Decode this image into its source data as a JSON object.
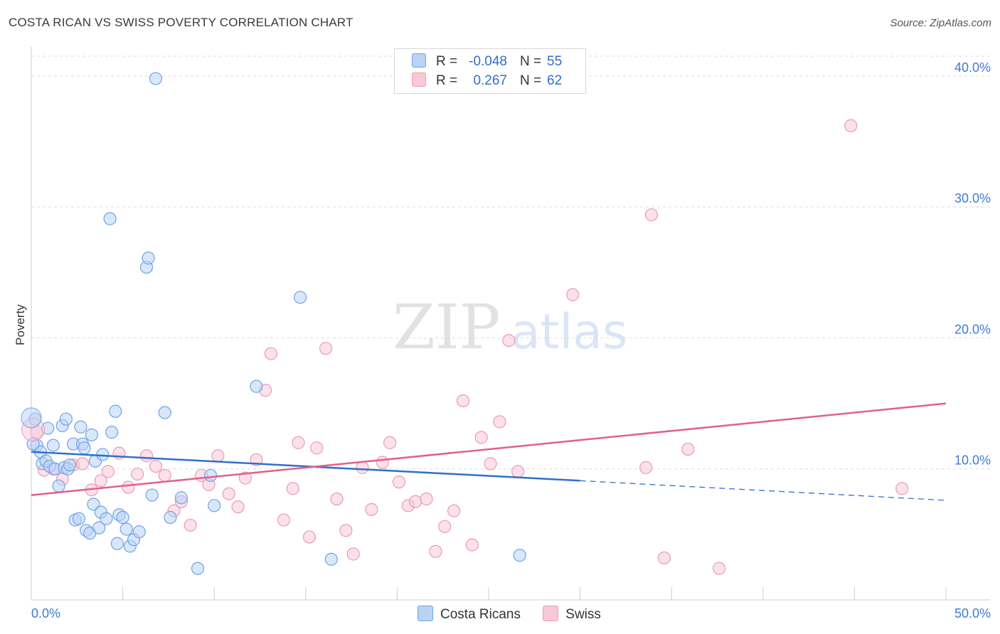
{
  "title": "COSTA RICAN VS SWISS POVERTY CORRELATION CHART",
  "source": "Source: ZipAtlas.com",
  "watermark": {
    "zip": "ZIP",
    "atlas": "atlas"
  },
  "legend": {
    "r_label": "R =",
    "n_label": "N =",
    "rows": [
      {
        "r": "-0.048",
        "n": "55"
      },
      {
        "r": "0.267",
        "n": "62"
      }
    ]
  },
  "chart_data": {
    "type": "scatter",
    "title": "COSTA RICAN VS SWISS POVERTY CORRELATION CHART",
    "xlabel": "",
    "ylabel": "Poverty",
    "xlim": [
      0,
      50
    ],
    "ylim": [
      0,
      42
    ],
    "x_tick_labels": [
      {
        "value": 0,
        "label": "0.0%"
      },
      {
        "value": 50,
        "label": "50.0%"
      }
    ],
    "x_minor_ticks": [
      0,
      5,
      10,
      15,
      20,
      25,
      30,
      35,
      40,
      45,
      50
    ],
    "y_ticks": [
      {
        "value": 10,
        "label": "10.0%"
      },
      {
        "value": 20,
        "label": "20.0%"
      },
      {
        "value": 30,
        "label": "30.0%"
      },
      {
        "value": 40,
        "label": "40.0%"
      }
    ],
    "grid": "horizontal-dashed",
    "series": [
      {
        "name": "Costa Ricans",
        "color": "#6fa3e6",
        "fill": "#b9d3f5",
        "line_color": "#2f6fce",
        "r": -0.048,
        "n": 55,
        "trend": {
          "x0": 0,
          "y0": 11.3,
          "x1": 30,
          "y1": 9.1,
          "dash_to_x": 50,
          "dash_to_y": 7.6
        },
        "points": [
          [
            0.2,
            13.8
          ],
          [
            0.3,
            11.8
          ],
          [
            0.5,
            11.3
          ],
          [
            0.6,
            10.4
          ],
          [
            0.8,
            10.6
          ],
          [
            0.9,
            13.1
          ],
          [
            1.0,
            10.2
          ],
          [
            1.2,
            11.8
          ],
          [
            1.3,
            10.0
          ],
          [
            1.5,
            8.7
          ],
          [
            1.7,
            13.3
          ],
          [
            1.8,
            10.1
          ],
          [
            1.9,
            13.8
          ],
          [
            2.0,
            10.0
          ],
          [
            2.1,
            10.3
          ],
          [
            2.3,
            11.9
          ],
          [
            2.4,
            6.1
          ],
          [
            2.6,
            6.2
          ],
          [
            2.7,
            13.2
          ],
          [
            2.8,
            11.9
          ],
          [
            2.9,
            11.6
          ],
          [
            3.0,
            5.3
          ],
          [
            3.2,
            5.1
          ],
          [
            3.3,
            12.6
          ],
          [
            3.4,
            7.3
          ],
          [
            3.5,
            10.6
          ],
          [
            3.7,
            5.5
          ],
          [
            3.8,
            6.7
          ],
          [
            3.9,
            11.1
          ],
          [
            4.1,
            6.2
          ],
          [
            4.3,
            29.1
          ],
          [
            4.4,
            12.8
          ],
          [
            4.6,
            14.4
          ],
          [
            4.7,
            4.3
          ],
          [
            4.8,
            6.5
          ],
          [
            5.0,
            6.3
          ],
          [
            5.2,
            5.4
          ],
          [
            5.4,
            4.1
          ],
          [
            5.6,
            4.6
          ],
          [
            5.9,
            5.2
          ],
          [
            6.3,
            25.4
          ],
          [
            6.4,
            26.1
          ],
          [
            6.6,
            8.0
          ],
          [
            6.8,
            39.8
          ],
          [
            7.3,
            14.3
          ],
          [
            7.6,
            6.3
          ],
          [
            8.2,
            7.8
          ],
          [
            9.1,
            2.4
          ],
          [
            9.8,
            9.5
          ],
          [
            10.0,
            7.2
          ],
          [
            12.3,
            16.3
          ],
          [
            14.7,
            23.1
          ],
          [
            16.4,
            3.1
          ],
          [
            26.7,
            3.4
          ],
          [
            0.1,
            11.9
          ]
        ]
      },
      {
        "name": "Swiss",
        "color": "#ec9ab6",
        "fill": "#f7c9d8",
        "line_color": "#e0608e",
        "r": 0.267,
        "n": 62,
        "trend": {
          "x0": 0,
          "y0": 8.0,
          "x1": 50,
          "y1": 15.0
        },
        "points": [
          [
            0.3,
            12.8
          ],
          [
            0.7,
            9.9
          ],
          [
            1.2,
            10.0
          ],
          [
            1.7,
            9.2
          ],
          [
            2.3,
            10.3
          ],
          [
            2.8,
            10.4
          ],
          [
            3.3,
            8.4
          ],
          [
            3.8,
            9.1
          ],
          [
            4.2,
            9.8
          ],
          [
            4.8,
            11.2
          ],
          [
            5.3,
            8.6
          ],
          [
            5.8,
            9.6
          ],
          [
            6.3,
            11.0
          ],
          [
            6.8,
            10.2
          ],
          [
            7.3,
            9.5
          ],
          [
            7.8,
            6.8
          ],
          [
            8.2,
            7.5
          ],
          [
            8.7,
            5.7
          ],
          [
            9.3,
            9.5
          ],
          [
            9.7,
            8.8
          ],
          [
            10.2,
            11.0
          ],
          [
            10.8,
            8.1
          ],
          [
            11.3,
            7.1
          ],
          [
            11.7,
            9.3
          ],
          [
            12.3,
            10.7
          ],
          [
            12.8,
            16.0
          ],
          [
            13.1,
            18.8
          ],
          [
            13.8,
            6.1
          ],
          [
            14.3,
            8.5
          ],
          [
            14.6,
            12.0
          ],
          [
            15.2,
            4.8
          ],
          [
            15.6,
            11.6
          ],
          [
            16.1,
            19.2
          ],
          [
            16.7,
            7.7
          ],
          [
            17.2,
            5.3
          ],
          [
            17.6,
            3.5
          ],
          [
            18.1,
            10.1
          ],
          [
            18.6,
            6.9
          ],
          [
            19.2,
            10.5
          ],
          [
            19.6,
            12.0
          ],
          [
            20.1,
            9.0
          ],
          [
            20.6,
            7.2
          ],
          [
            21.0,
            7.5
          ],
          [
            21.6,
            7.7
          ],
          [
            22.1,
            3.7
          ],
          [
            22.6,
            5.6
          ],
          [
            23.1,
            6.8
          ],
          [
            23.6,
            15.2
          ],
          [
            24.1,
            4.2
          ],
          [
            24.6,
            12.4
          ],
          [
            25.1,
            10.4
          ],
          [
            25.6,
            13.6
          ],
          [
            26.1,
            19.8
          ],
          [
            26.6,
            9.8
          ],
          [
            29.6,
            23.3
          ],
          [
            33.6,
            10.1
          ],
          [
            33.9,
            29.4
          ],
          [
            34.6,
            3.2
          ],
          [
            35.9,
            11.5
          ],
          [
            37.6,
            2.4
          ],
          [
            44.8,
            36.2
          ],
          [
            47.6,
            8.5
          ]
        ]
      }
    ]
  },
  "colors": {
    "blue": "#2f6fce",
    "pink": "#e0608e",
    "axis_text": "#3f7bd6",
    "grid": "#dddddd"
  }
}
